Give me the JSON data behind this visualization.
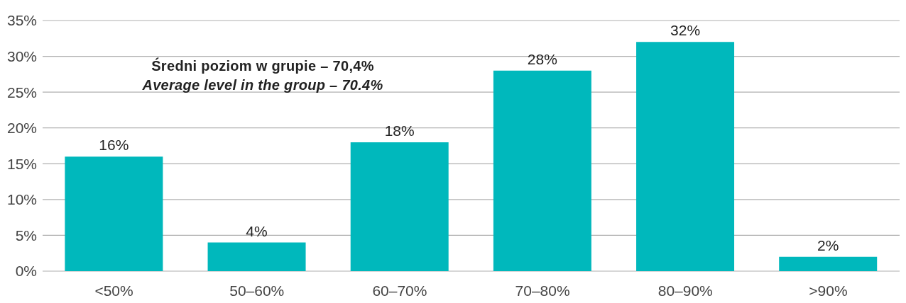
{
  "chart_data": {
    "type": "bar",
    "categories": [
      "<50%",
      "50–60%",
      "60–70%",
      "70–80%",
      "80–90%",
      ">90%"
    ],
    "values": [
      16,
      4,
      18,
      28,
      32,
      2
    ],
    "value_labels": [
      "16%",
      "4%",
      "18%",
      "28%",
      "32%",
      "2%"
    ],
    "color": "#00b8bc",
    "ylim": [
      0,
      35
    ],
    "yticks": [
      {
        "value": 0,
        "label": "0%"
      },
      {
        "value": 5,
        "label": "5%"
      },
      {
        "value": 10,
        "label": "10%"
      },
      {
        "value": 15,
        "label": "15%"
      },
      {
        "value": 20,
        "label": "20%"
      },
      {
        "value": 25,
        "label": "25%"
      },
      {
        "value": 30,
        "label": "30%"
      },
      {
        "value": 35,
        "label": "35%"
      }
    ],
    "grid": "y",
    "annotations": [
      "Średni poziom w grupie – 70,4%",
      "Average level in the group – 70.4%"
    ]
  }
}
